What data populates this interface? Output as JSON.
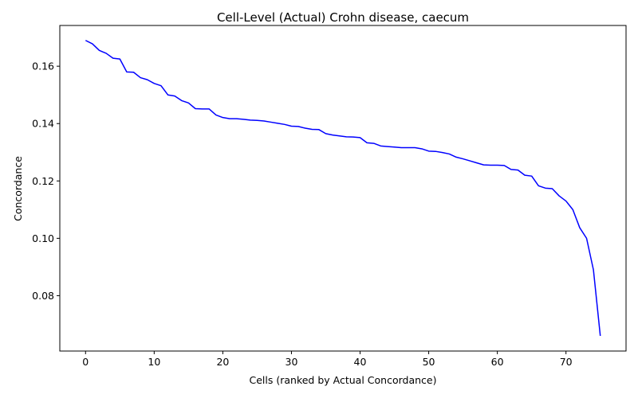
{
  "chart_data": {
    "type": "line",
    "title": "Cell-Level (Actual) Crohn disease, caecum",
    "xlabel": "Cells (ranked by Actual Concordance)",
    "ylabel": "Concordance",
    "xlim": [
      -3.75,
      78.75
    ],
    "ylim": [
      0.0607,
      0.1742
    ],
    "xticks": [
      0,
      10,
      20,
      30,
      40,
      50,
      60,
      70
    ],
    "yticks": [
      0.08,
      0.1,
      0.12,
      0.14,
      0.16
    ],
    "ytick_labels": [
      "0.08",
      "0.10",
      "0.12",
      "0.14",
      "0.16"
    ],
    "grid": false,
    "series": [
      {
        "color": "#0000ff",
        "x": [
          0,
          1,
          2,
          3,
          4,
          5,
          6,
          7,
          8,
          9,
          10,
          11,
          12,
          13,
          14,
          15,
          16,
          17,
          18,
          19,
          20,
          21,
          22,
          23,
          24,
          25,
          26,
          27,
          28,
          29,
          30,
          31,
          32,
          33,
          34,
          35,
          36,
          37,
          38,
          39,
          40,
          41,
          42,
          43,
          44,
          45,
          46,
          47,
          48,
          49,
          50,
          51,
          52,
          53,
          54,
          55,
          56,
          57,
          58,
          59,
          60,
          61,
          62,
          63,
          64,
          65,
          66,
          67,
          68,
          69,
          70,
          71,
          72,
          73,
          74,
          75
        ],
        "y": [
          0.169,
          0.1678,
          0.1655,
          0.1645,
          0.1628,
          0.1625,
          0.158,
          0.1579,
          0.156,
          0.1553,
          0.154,
          0.1532,
          0.15,
          0.1496,
          0.148,
          0.1472,
          0.1452,
          0.1451,
          0.1451,
          0.143,
          0.1421,
          0.1417,
          0.1417,
          0.1415,
          0.1412,
          0.1411,
          0.1409,
          0.1405,
          0.1401,
          0.1397,
          0.1391,
          0.139,
          0.1384,
          0.138,
          0.1379,
          0.1365,
          0.136,
          0.1357,
          0.1354,
          0.1353,
          0.1351,
          0.1333,
          0.1331,
          0.1322,
          0.132,
          0.1318,
          0.1316,
          0.1316,
          0.1316,
          0.1312,
          0.1304,
          0.1303,
          0.1299,
          0.1294,
          0.1283,
          0.1277,
          0.127,
          0.1263,
          0.1256,
          0.1255,
          0.1255,
          0.1254,
          0.124,
          0.1238,
          0.122,
          0.1217,
          0.1183,
          0.1175,
          0.1173,
          0.1148,
          0.113,
          0.11,
          0.1037,
          0.1,
          0.089,
          0.066
        ]
      }
    ]
  }
}
